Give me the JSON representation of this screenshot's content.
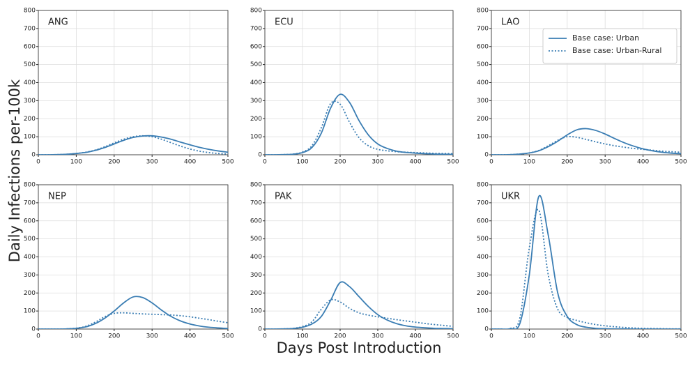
{
  "figure": {
    "ylabel": "Daily Infections per-100k",
    "xlabel": "Days Post Introduction"
  },
  "chart_data": [
    {
      "type": "line",
      "title": "ANG",
      "x": [
        0,
        25,
        50,
        75,
        100,
        125,
        150,
        175,
        200,
        225,
        250,
        275,
        300,
        325,
        350,
        375,
        400,
        425,
        450,
        475,
        500
      ],
      "series": [
        {
          "color": "#3a7db3",
          "linestyle": "solid",
          "values": [
            0,
            0,
            1,
            3,
            7,
            13,
            24,
            40,
            60,
            80,
            96,
            104,
            105,
            98,
            86,
            70,
            55,
            41,
            30,
            21,
            14
          ]
        },
        {
          "color": "#3a7db3",
          "linestyle": "dotted",
          "values": [
            0,
            0,
            1,
            3,
            7,
            14,
            26,
            44,
            66,
            86,
            100,
            105,
            100,
            86,
            67,
            48,
            32,
            20,
            12,
            7,
            4
          ]
        }
      ],
      "xlim": [
        0,
        500
      ],
      "ylim": [
        0,
        800
      ],
      "xticks": [
        0,
        100,
        200,
        300,
        400,
        500
      ],
      "yticks": [
        0,
        100,
        200,
        300,
        400,
        500,
        600,
        700,
        800
      ],
      "grid": true
    },
    {
      "type": "line",
      "title": "ECU",
      "x": [
        0,
        25,
        50,
        75,
        100,
        125,
        150,
        175,
        200,
        225,
        250,
        275,
        300,
        325,
        350,
        375,
        400,
        425,
        450,
        475,
        500
      ],
      "series": [
        {
          "color": "#3a7db3",
          "linestyle": "solid",
          "values": [
            0,
            0,
            1,
            3,
            12,
            40,
            120,
            260,
            335,
            290,
            190,
            110,
            60,
            35,
            20,
            13,
            9,
            6,
            4,
            3,
            2
          ]
        },
        {
          "color": "#3a7db3",
          "linestyle": "dotted",
          "values": [
            0,
            0,
            1,
            4,
            15,
            50,
            150,
            285,
            280,
            180,
            95,
            50,
            30,
            22,
            17,
            14,
            12,
            10,
            8,
            7,
            6
          ]
        }
      ],
      "xlim": [
        0,
        500
      ],
      "ylim": [
        0,
        800
      ],
      "xticks": [
        0,
        100,
        200,
        300,
        400,
        500
      ],
      "yticks": [
        0,
        100,
        200,
        300,
        400,
        500,
        600,
        700,
        800
      ],
      "grid": true
    },
    {
      "type": "line",
      "title": "LAO",
      "x": [
        0,
        25,
        50,
        75,
        100,
        125,
        150,
        175,
        200,
        225,
        250,
        275,
        300,
        325,
        350,
        375,
        400,
        425,
        450,
        475,
        500
      ],
      "series": [
        {
          "name": "Base case: Urban",
          "color": "#3a7db3",
          "linestyle": "solid",
          "values": [
            0,
            0,
            1,
            4,
            10,
            22,
            45,
            75,
            110,
            138,
            145,
            135,
            115,
            90,
            67,
            48,
            33,
            22,
            14,
            9,
            6
          ]
        },
        {
          "name": "Base case: Urban-Rural",
          "color": "#3a7db3",
          "linestyle": "dotted",
          "values": [
            0,
            0,
            1,
            4,
            10,
            24,
            50,
            80,
            100,
            97,
            85,
            72,
            60,
            50,
            42,
            35,
            30,
            25,
            20,
            17,
            14
          ]
        }
      ],
      "legend": "upper right",
      "xlim": [
        0,
        500
      ],
      "ylim": [
        0,
        800
      ],
      "xticks": [
        0,
        100,
        200,
        300,
        400,
        500
      ],
      "yticks": [
        0,
        100,
        200,
        300,
        400,
        500,
        600,
        700,
        800
      ],
      "grid": true
    },
    {
      "type": "line",
      "title": "NEP",
      "x": [
        0,
        25,
        50,
        75,
        100,
        125,
        150,
        175,
        200,
        225,
        250,
        275,
        300,
        325,
        350,
        375,
        400,
        425,
        450,
        475,
        500
      ],
      "series": [
        {
          "color": "#3a7db3",
          "linestyle": "solid",
          "values": [
            0,
            0,
            0,
            1,
            4,
            12,
            30,
            60,
            100,
            145,
            178,
            175,
            145,
            105,
            70,
            45,
            28,
            17,
            10,
            6,
            3
          ]
        },
        {
          "color": "#3a7db3",
          "linestyle": "dotted",
          "values": [
            0,
            0,
            0,
            1,
            5,
            15,
            38,
            68,
            87,
            90,
            87,
            84,
            82,
            80,
            78,
            74,
            68,
            60,
            52,
            43,
            35
          ]
        }
      ],
      "xlim": [
        0,
        500
      ],
      "ylim": [
        0,
        800
      ],
      "xticks": [
        0,
        100,
        200,
        300,
        400,
        500
      ],
      "yticks": [
        0,
        100,
        200,
        300,
        400,
        500,
        600,
        700,
        800
      ],
      "grid": true
    },
    {
      "type": "line",
      "title": "PAK",
      "x": [
        0,
        25,
        50,
        75,
        100,
        125,
        150,
        175,
        200,
        225,
        250,
        275,
        300,
        325,
        350,
        375,
        400,
        425,
        450,
        475,
        500
      ],
      "series": [
        {
          "color": "#3a7db3",
          "linestyle": "solid",
          "values": [
            0,
            0,
            1,
            3,
            10,
            28,
            70,
            160,
            258,
            235,
            180,
            125,
            80,
            50,
            30,
            18,
            11,
            7,
            4,
            3,
            2
          ]
        },
        {
          "color": "#3a7db3",
          "linestyle": "dotted",
          "values": [
            0,
            0,
            1,
            4,
            14,
            40,
            110,
            162,
            150,
            115,
            90,
            77,
            68,
            60,
            52,
            45,
            38,
            31,
            25,
            20,
            15
          ]
        }
      ],
      "xlim": [
        0,
        500
      ],
      "ylim": [
        0,
        800
      ],
      "xticks": [
        0,
        100,
        200,
        300,
        400,
        500
      ],
      "yticks": [
        0,
        100,
        200,
        300,
        400,
        500,
        600,
        700,
        800
      ],
      "grid": true
    },
    {
      "type": "line",
      "title": "UKR",
      "x": [
        0,
        25,
        50,
        75,
        100,
        125,
        150,
        175,
        200,
        225,
        250,
        275,
        300,
        325,
        350,
        375,
        400,
        425,
        450,
        475,
        500
      ],
      "series": [
        {
          "color": "#3a7db3",
          "linestyle": "solid",
          "values": [
            0,
            0,
            2,
            30,
            300,
            735,
            520,
            200,
            70,
            25,
            10,
            4,
            2,
            1,
            1,
            0,
            0,
            0,
            0,
            0,
            0
          ]
        },
        {
          "color": "#3a7db3",
          "linestyle": "dotted",
          "values": [
            0,
            0,
            3,
            60,
            450,
            660,
            300,
            110,
            65,
            48,
            35,
            25,
            18,
            13,
            9,
            6,
            4,
            3,
            2,
            1,
            1
          ]
        }
      ],
      "xlim": [
        0,
        500
      ],
      "ylim": [
        0,
        800
      ],
      "xticks": [
        0,
        100,
        200,
        300,
        400,
        500
      ],
      "yticks": [
        0,
        100,
        200,
        300,
        400,
        500,
        600,
        700,
        800
      ],
      "grid": true
    }
  ]
}
